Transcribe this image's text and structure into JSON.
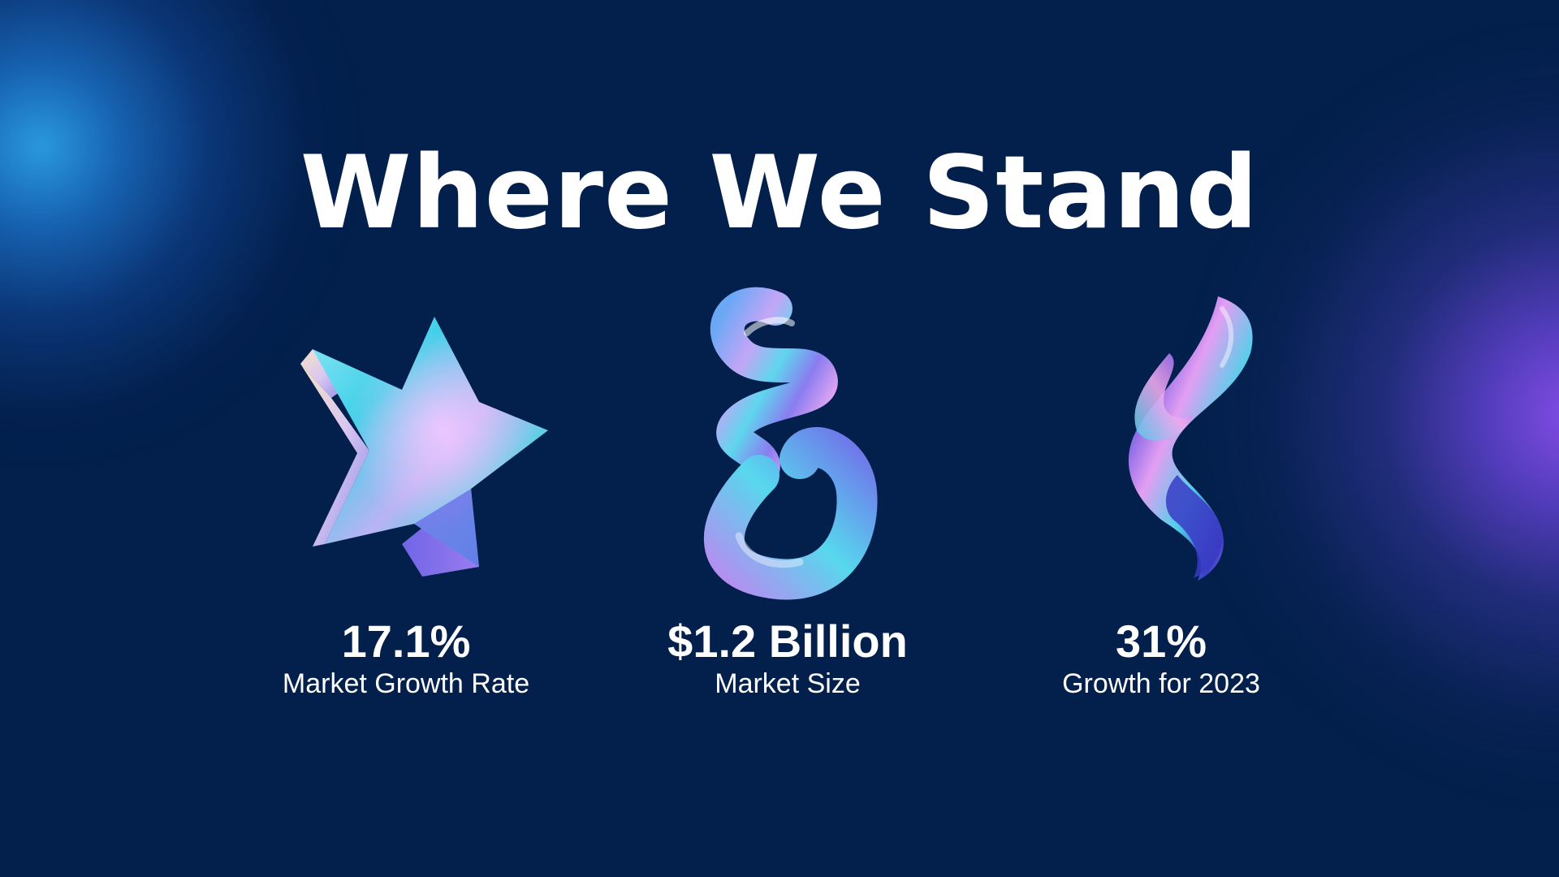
{
  "slide": {
    "title": "Where We Stand",
    "colors": {
      "background": "#03204c",
      "glow_left": "#2ca0e6",
      "glow_right": "#8c50f0",
      "text": "#ffffff"
    }
  },
  "stats": [
    {
      "value": "17.1%",
      "label": "Market Growth Rate",
      "icon": "holographic-star-icon"
    },
    {
      "value": "$1.2 Billion",
      "label": "Market Size",
      "icon": "holographic-swirl-icon"
    },
    {
      "value": "31%",
      "label": "Growth for 2023",
      "icon": "holographic-ribbon-icon"
    }
  ]
}
